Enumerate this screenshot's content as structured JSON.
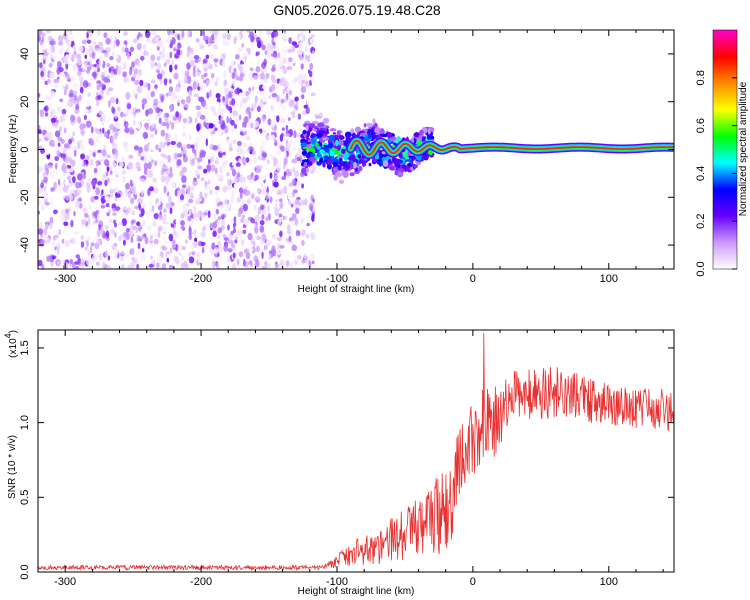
{
  "title": "GN05.2026.075.19.48.C28",
  "chart_data": [
    {
      "type": "heatmap",
      "name": "spectrogram",
      "xlabel": "Height of straight line (km)",
      "ylabel": "Frequency (Hz)",
      "xlim": [
        -320,
        148
      ],
      "ylim": [
        -50,
        50
      ],
      "xticks": [
        -300,
        -200,
        -100,
        0,
        100
      ],
      "xticklabels": [
        "-300",
        "-200",
        "-100",
        "0",
        "100"
      ],
      "yticks": [
        -40,
        -20,
        0,
        20,
        40
      ],
      "yticklabels": [
        "-40",
        "-20",
        "0",
        "20",
        "40"
      ],
      "noise_region_km": [
        -320,
        -125
      ],
      "transition_region_km": [
        -125,
        -30
      ],
      "signal_frequency_hz": 0,
      "colorbar": {
        "label": "Normalized spectral amplitude",
        "range": [
          0,
          1
        ],
        "ticks": [
          0,
          0.2,
          0.4,
          0.6,
          0.8
        ],
        "ticklabels": [
          "0.0",
          "0.2",
          "0.4",
          "0.6",
          "0.8"
        ],
        "colors": [
          "#ffffff",
          "#cc99ff",
          "#6600ff",
          "#0000ff",
          "#00ffff",
          "#00ff00",
          "#ffff00",
          "#ff8800",
          "#ff0000",
          "#ff00cc"
        ]
      }
    },
    {
      "type": "line",
      "name": "snr",
      "xlabel": "Height of straight line (km)",
      "ylabel": "SNR (10 * v/v)",
      "scale_label": "(x10",
      "scale_exponent": "4",
      "xlim": [
        -320,
        148
      ],
      "ylim": [
        0,
        1.62
      ],
      "xticks": [
        -300,
        -200,
        -100,
        0,
        100
      ],
      "xticklabels": [
        "-300",
        "-200",
        "-100",
        "0",
        "100"
      ],
      "yticks": [
        0,
        0.5,
        1.0,
        1.5
      ],
      "yticklabels": [
        "0.0",
        "0.5",
        "1.0",
        "1.5"
      ],
      "line_color": "#e83030",
      "profile_km": [
        -320,
        -110,
        -90,
        -70,
        -50,
        -35,
        -25,
        -18,
        -10,
        0,
        15,
        30,
        60,
        100,
        148
      ],
      "profile_snr": [
        0.03,
        0.03,
        0.12,
        0.17,
        0.25,
        0.32,
        0.38,
        0.42,
        0.72,
        0.92,
        1.0,
        1.18,
        1.2,
        1.12,
        1.08
      ],
      "noise_amplitude": [
        0.015,
        0.015,
        0.08,
        0.12,
        0.18,
        0.22,
        0.28,
        0.3,
        0.25,
        0.28,
        0.25,
        0.17,
        0.18,
        0.14,
        0.14
      ],
      "peak_snr": 1.6,
      "peak_km": 8
    }
  ]
}
